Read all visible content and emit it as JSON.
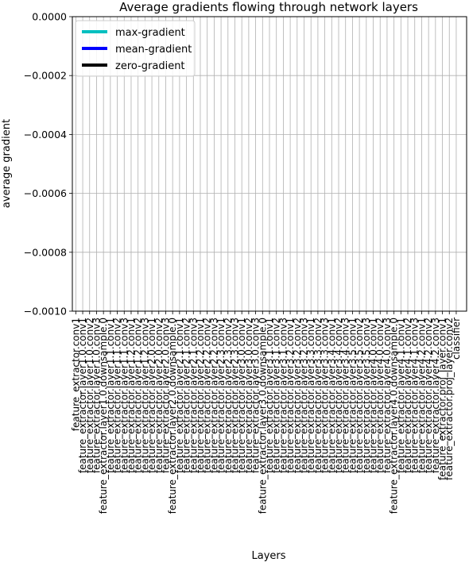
{
  "chart_data": {
    "type": "bar",
    "title": "Average gradients flowing through network layers",
    "xlabel": "Layers",
    "ylabel": "average gradient",
    "ylim": [
      -0.001,
      0.0
    ],
    "yticks": [
      "0.0000",
      "−0.0002",
      "−0.0004",
      "−0.0006",
      "−0.0008",
      "−0.0010"
    ],
    "grid": true,
    "legend_position": "top-left",
    "legend": [
      {
        "label": "max-gradient",
        "color": "#00bfbf"
      },
      {
        "label": "mean-gradient",
        "color": "#0000ff"
      },
      {
        "label": "zero-gradient",
        "color": "#000000"
      }
    ],
    "categories": [
      "feature_extractor.conv1",
      "feature_extractor.layer1.0.conv1",
      "feature_extractor.layer1.0.conv2",
      "feature_extractor.layer1.0.conv3",
      "feature_extractor.layer1.0.downsample.0",
      "feature_extractor.layer1.1.conv1",
      "feature_extractor.layer1.1.conv2",
      "feature_extractor.layer1.1.conv3",
      "feature_extractor.layer1.2.conv1",
      "feature_extractor.layer1.2.conv2",
      "feature_extractor.layer1.2.conv3",
      "feature_extractor.layer2.0.conv1",
      "feature_extractor.layer2.0.conv2",
      "feature_extractor.layer2.0.conv3",
      "feature_extractor.layer2.0.downsample.0",
      "feature_extractor.layer2.1.conv1",
      "feature_extractor.layer2.1.conv2",
      "feature_extractor.layer2.1.conv3",
      "feature_extractor.layer2.2.conv1",
      "feature_extractor.layer2.2.conv2",
      "feature_extractor.layer2.2.conv3",
      "feature_extractor.layer2.3.conv1",
      "feature_extractor.layer2.3.conv2",
      "feature_extractor.layer2.3.conv3",
      "feature_extractor.layer3.0.conv1",
      "feature_extractor.layer3.0.conv2",
      "feature_extractor.layer3.0.conv3",
      "feature_extractor.layer3.0.downsample.0",
      "feature_extractor.layer3.1.conv1",
      "feature_extractor.layer3.1.conv2",
      "feature_extractor.layer3.1.conv3",
      "feature_extractor.layer3.2.conv1",
      "feature_extractor.layer3.2.conv2",
      "feature_extractor.layer3.2.conv3",
      "feature_extractor.layer3.3.conv1",
      "feature_extractor.layer3.3.conv2",
      "feature_extractor.layer3.3.conv3",
      "feature_extractor.layer3.4.conv1",
      "feature_extractor.layer3.4.conv2",
      "feature_extractor.layer3.4.conv3",
      "feature_extractor.layer3.5.conv1",
      "feature_extractor.layer3.5.conv2",
      "feature_extractor.layer3.5.conv3",
      "feature_extractor.layer4.0.conv1",
      "feature_extractor.layer4.0.conv2",
      "feature_extractor.layer4.0.conv3",
      "feature_extractor.layer4.0.downsample.0",
      "feature_extractor.layer4.1.conv1",
      "feature_extractor.layer4.1.conv2",
      "feature_extractor.layer4.1.conv3",
      "feature_extractor.layer4.2.conv1",
      "feature_extractor.layer4.2.conv2",
      "feature_extractor.layer4.2.conv3",
      "feature_extractor.proj_layer.conv1",
      "feature_extractor.proj_layer.conv2",
      "classifier"
    ],
    "series": [
      {
        "name": "max-gradient",
        "color": "#00bfbf",
        "values": [
          0,
          0,
          0,
          0,
          0,
          0,
          0,
          0,
          0,
          0,
          0,
          0,
          0,
          0,
          0,
          0,
          0,
          0,
          0,
          0,
          0,
          0,
          0,
          0,
          0,
          0,
          0,
          0,
          0,
          0,
          0,
          0,
          0,
          0,
          0,
          0,
          0,
          0,
          0,
          0,
          0,
          0,
          0,
          0,
          0,
          0,
          0,
          0,
          0,
          0,
          0,
          0,
          0,
          0,
          0,
          0
        ]
      },
      {
        "name": "mean-gradient",
        "color": "#0000ff",
        "values": [
          0,
          0,
          0,
          0,
          0,
          0,
          0,
          0,
          0,
          0,
          0,
          0,
          0,
          0,
          0,
          0,
          0,
          0,
          0,
          0,
          0,
          0,
          0,
          0,
          0,
          0,
          0,
          0,
          0,
          0,
          0,
          0,
          0,
          0,
          0,
          0,
          0,
          0,
          0,
          0,
          0,
          0,
          0,
          0,
          0,
          0,
          0,
          0,
          0,
          0,
          0,
          0,
          0,
          0,
          0,
          0
        ]
      }
    ]
  }
}
